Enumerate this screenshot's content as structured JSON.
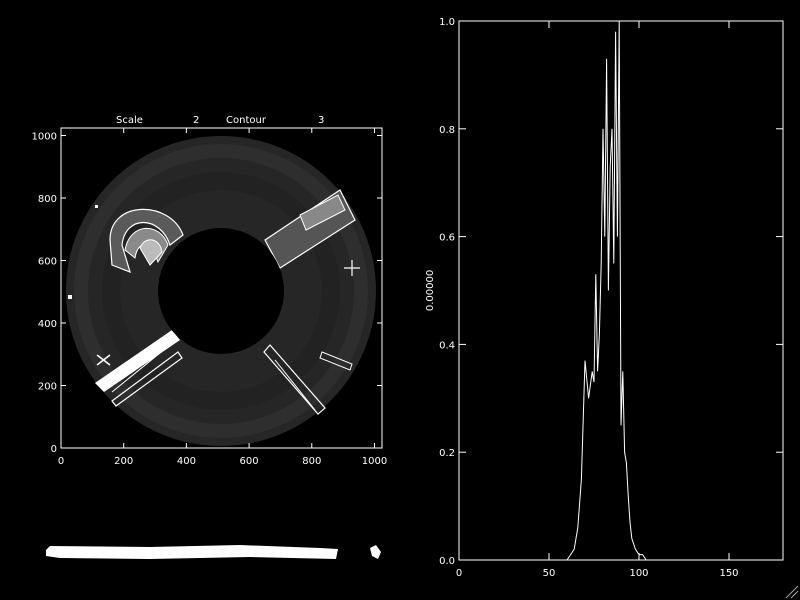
{
  "left_panel": {
    "scale_label": "Scale",
    "scale_value": "2",
    "contour_label": "Contour",
    "contour_value": "3",
    "x_ticks": [
      "0",
      "200",
      "400",
      "600",
      "800",
      "1000"
    ],
    "y_ticks": [
      "0",
      "200",
      "400",
      "600",
      "800",
      "1000"
    ]
  },
  "chart_data": {
    "type": "line",
    "title": "",
    "xlabel": "",
    "ylabel": "0.00000",
    "xlim": [
      0,
      180
    ],
    "ylim": [
      0,
      1.0
    ],
    "x_ticks": [
      "0",
      "50",
      "100",
      "150"
    ],
    "y_ticks": [
      "0.0",
      "0.2",
      "0.4",
      "0.6",
      "0.8",
      "1.0"
    ],
    "series": [
      {
        "x": [
          0,
          60,
          62,
          64,
          66,
          68,
          70,
          72,
          74,
          75,
          76,
          77,
          78,
          79,
          80,
          81,
          82,
          83,
          84,
          85,
          86,
          87,
          88,
          89,
          90,
          91,
          92,
          93,
          94,
          95,
          96,
          98,
          100,
          102,
          104,
          106,
          180
        ],
        "y": [
          0,
          0,
          0.01,
          0.02,
          0.06,
          0.15,
          0.37,
          0.3,
          0.35,
          0.33,
          0.53,
          0.35,
          0.42,
          0.55,
          0.8,
          0.6,
          0.93,
          0.5,
          0.73,
          0.8,
          0.55,
          0.98,
          0.6,
          1.0,
          0.25,
          0.35,
          0.2,
          0.18,
          0.12,
          0.07,
          0.04,
          0.02,
          0.01,
          0.01,
          0.0,
          0.0,
          0
        ]
      }
    ]
  }
}
